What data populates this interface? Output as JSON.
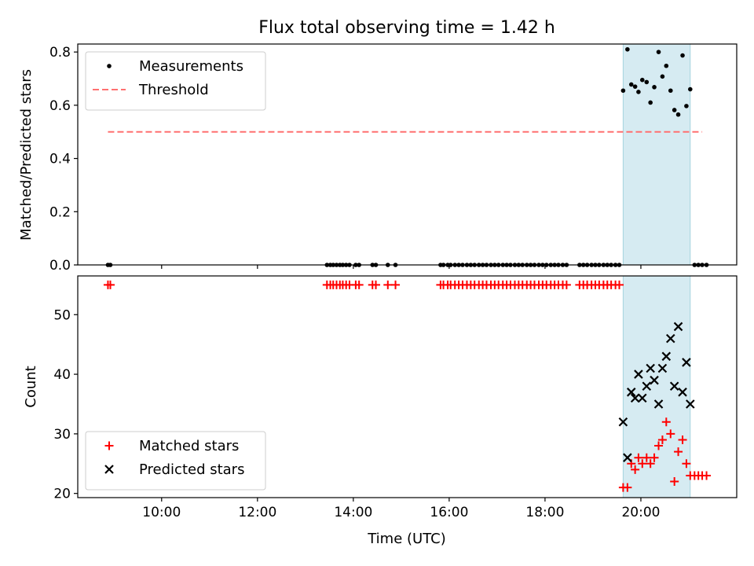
{
  "chart_data": [
    {
      "type": "scatter",
      "title": "Flux total observing time = 1.42 h",
      "xlabel": "",
      "ylabel": "Matched/Predicted stars",
      "xlim": [
        8.25,
        22.0
      ],
      "ylim": [
        0.0,
        0.83
      ],
      "yticks": [
        0.0,
        0.2,
        0.4,
        0.6,
        0.8
      ],
      "ytick_labels": [
        "0.0",
        "0.2",
        "0.4",
        "0.6",
        "0.8"
      ],
      "highlight_span": [
        19.63,
        21.03
      ],
      "legend_placement": "upper-left",
      "grid": false,
      "series": [
        {
          "name": "Measurements",
          "marker": "dot",
          "color": "#000000",
          "points": [
            [
              8.88,
              0
            ],
            [
              8.93,
              0
            ],
            [
              13.45,
              0
            ],
            [
              13.52,
              0
            ],
            [
              13.58,
              0
            ],
            [
              13.65,
              0
            ],
            [
              13.72,
              0
            ],
            [
              13.78,
              0
            ],
            [
              13.85,
              0
            ],
            [
              13.92,
              0
            ],
            [
              14.05,
              0
            ],
            [
              14.12,
              0
            ],
            [
              14.4,
              0
            ],
            [
              14.47,
              0
            ],
            [
              14.72,
              0
            ],
            [
              14.88,
              0
            ],
            [
              15.82,
              0
            ],
            [
              15.88,
              0
            ],
            [
              15.97,
              0
            ],
            [
              16.03,
              0
            ],
            [
              16.12,
              0
            ],
            [
              16.2,
              0
            ],
            [
              16.28,
              0
            ],
            [
              16.37,
              0
            ],
            [
              16.45,
              0
            ],
            [
              16.53,
              0
            ],
            [
              16.62,
              0
            ],
            [
              16.7,
              0
            ],
            [
              16.78,
              0
            ],
            [
              16.87,
              0
            ],
            [
              16.95,
              0
            ],
            [
              17.03,
              0
            ],
            [
              17.12,
              0
            ],
            [
              17.2,
              0
            ],
            [
              17.28,
              0
            ],
            [
              17.37,
              0
            ],
            [
              17.45,
              0
            ],
            [
              17.53,
              0
            ],
            [
              17.62,
              0
            ],
            [
              17.7,
              0
            ],
            [
              17.78,
              0
            ],
            [
              17.87,
              0
            ],
            [
              17.95,
              0
            ],
            [
              18.03,
              0
            ],
            [
              18.12,
              0
            ],
            [
              18.2,
              0
            ],
            [
              18.28,
              0
            ],
            [
              18.37,
              0
            ],
            [
              18.45,
              0
            ],
            [
              18.72,
              0
            ],
            [
              18.8,
              0
            ],
            [
              18.88,
              0
            ],
            [
              18.97,
              0
            ],
            [
              19.05,
              0
            ],
            [
              19.13,
              0
            ],
            [
              19.22,
              0
            ],
            [
              19.3,
              0
            ],
            [
              19.38,
              0
            ],
            [
              19.47,
              0
            ],
            [
              19.55,
              0
            ],
            [
              19.63,
              0.655
            ],
            [
              19.72,
              0.81
            ],
            [
              19.8,
              0.678
            ],
            [
              19.88,
              0.67
            ],
            [
              19.95,
              0.65
            ],
            [
              20.03,
              0.695
            ],
            [
              20.12,
              0.687
            ],
            [
              20.2,
              0.61
            ],
            [
              20.28,
              0.668
            ],
            [
              20.37,
              0.8
            ],
            [
              20.45,
              0.708
            ],
            [
              20.53,
              0.748
            ],
            [
              20.62,
              0.655
            ],
            [
              20.7,
              0.582
            ],
            [
              20.78,
              0.565
            ],
            [
              20.87,
              0.787
            ],
            [
              20.95,
              0.597
            ],
            [
              21.03,
              0.66
            ],
            [
              21.12,
              0
            ],
            [
              21.2,
              0
            ],
            [
              21.28,
              0
            ],
            [
              21.37,
              0
            ]
          ]
        },
        {
          "name": "Threshold",
          "style": "dashed",
          "color": "#ff7070",
          "points": [
            [
              8.88,
              0.5
            ],
            [
              21.28,
              0.5
            ]
          ]
        }
      ]
    },
    {
      "type": "scatter",
      "title": "",
      "xlabel": "Time (UTC)",
      "ylabel": "Count",
      "xlim": [
        8.25,
        22.0
      ],
      "ylim": [
        19.3,
        56.5
      ],
      "yticks": [
        20,
        30,
        40,
        50
      ],
      "ytick_labels": [
        "20",
        "30",
        "40",
        "50"
      ],
      "xticks": [
        10,
        12,
        14,
        16,
        18,
        20
      ],
      "xtick_labels": [
        "10:00",
        "12:00",
        "14:00",
        "16:00",
        "18:00",
        "20:00"
      ],
      "highlight_span": [
        19.63,
        21.03
      ],
      "legend_placement": "lower-left",
      "grid": false,
      "series": [
        {
          "name": "Matched stars",
          "marker": "plus",
          "color": "#ff0000",
          "points": [
            [
              8.88,
              55
            ],
            [
              8.93,
              55
            ],
            [
              13.45,
              55
            ],
            [
              13.52,
              55
            ],
            [
              13.58,
              55
            ],
            [
              13.65,
              55
            ],
            [
              13.72,
              55
            ],
            [
              13.78,
              55
            ],
            [
              13.85,
              55
            ],
            [
              13.92,
              55
            ],
            [
              14.05,
              55
            ],
            [
              14.12,
              55
            ],
            [
              14.4,
              55
            ],
            [
              14.47,
              55
            ],
            [
              14.72,
              55
            ],
            [
              14.88,
              55
            ],
            [
              15.82,
              55
            ],
            [
              15.88,
              55
            ],
            [
              15.97,
              55
            ],
            [
              16.03,
              55
            ],
            [
              16.12,
              55
            ],
            [
              16.2,
              55
            ],
            [
              16.28,
              55
            ],
            [
              16.37,
              55
            ],
            [
              16.45,
              55
            ],
            [
              16.53,
              55
            ],
            [
              16.62,
              55
            ],
            [
              16.7,
              55
            ],
            [
              16.78,
              55
            ],
            [
              16.87,
              55
            ],
            [
              16.95,
              55
            ],
            [
              17.03,
              55
            ],
            [
              17.12,
              55
            ],
            [
              17.2,
              55
            ],
            [
              17.28,
              55
            ],
            [
              17.37,
              55
            ],
            [
              17.45,
              55
            ],
            [
              17.53,
              55
            ],
            [
              17.62,
              55
            ],
            [
              17.7,
              55
            ],
            [
              17.78,
              55
            ],
            [
              17.87,
              55
            ],
            [
              17.95,
              55
            ],
            [
              18.03,
              55
            ],
            [
              18.12,
              55
            ],
            [
              18.2,
              55
            ],
            [
              18.28,
              55
            ],
            [
              18.37,
              55
            ],
            [
              18.45,
              55
            ],
            [
              18.72,
              55
            ],
            [
              18.8,
              55
            ],
            [
              18.88,
              55
            ],
            [
              18.97,
              55
            ],
            [
              19.05,
              55
            ],
            [
              19.13,
              55
            ],
            [
              19.22,
              55
            ],
            [
              19.3,
              55
            ],
            [
              19.38,
              55
            ],
            [
              19.47,
              55
            ],
            [
              19.55,
              55
            ],
            [
              19.63,
              21
            ],
            [
              19.72,
              21
            ],
            [
              19.8,
              25
            ],
            [
              19.88,
              24
            ],
            [
              19.95,
              26
            ],
            [
              20.03,
              25
            ],
            [
              20.12,
              26
            ],
            [
              20.2,
              25
            ],
            [
              20.28,
              26
            ],
            [
              20.37,
              28
            ],
            [
              20.45,
              29
            ],
            [
              20.53,
              32
            ],
            [
              20.62,
              30
            ],
            [
              20.7,
              22
            ],
            [
              20.78,
              27
            ],
            [
              20.87,
              29
            ],
            [
              20.95,
              25
            ],
            [
              21.03,
              23
            ],
            [
              21.12,
              23
            ],
            [
              21.2,
              23
            ],
            [
              21.28,
              23
            ],
            [
              21.37,
              23
            ]
          ]
        },
        {
          "name": "Predicted stars",
          "marker": "x",
          "color": "#000000",
          "points": [
            [
              19.63,
              32
            ],
            [
              19.72,
              26
            ],
            [
              19.8,
              37
            ],
            [
              19.88,
              36
            ],
            [
              19.95,
              40
            ],
            [
              20.03,
              36
            ],
            [
              20.12,
              38
            ],
            [
              20.2,
              41
            ],
            [
              20.28,
              39
            ],
            [
              20.37,
              35
            ],
            [
              20.45,
              41
            ],
            [
              20.53,
              43
            ],
            [
              20.62,
              46
            ],
            [
              20.7,
              38
            ],
            [
              20.78,
              48
            ],
            [
              20.87,
              37
            ],
            [
              20.95,
              42
            ],
            [
              21.03,
              35
            ]
          ]
        }
      ]
    }
  ]
}
